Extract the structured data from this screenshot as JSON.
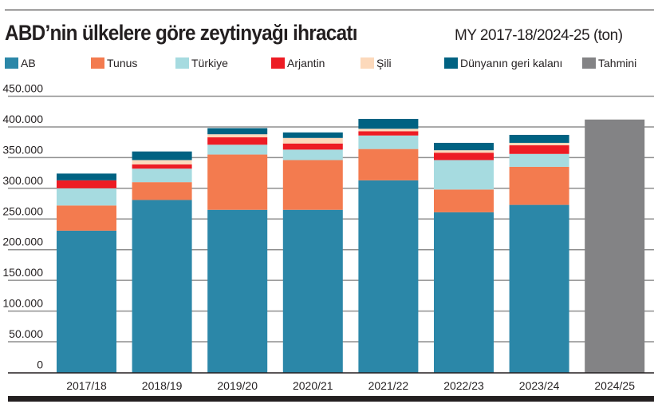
{
  "header": {
    "title": "ABD’nin ülkelere göre zeytinyağı ihracatı",
    "subtitle": "MY 2017-18/2024-25 (ton)"
  },
  "chart_data": {
    "type": "bar",
    "stacked": true,
    "title": "ABD’nin ülkelere göre zeytinyağı ihracatı",
    "subtitle": "MY 2017-18/2024-25 (ton)",
    "categories": [
      "2017/18",
      "2018/19",
      "2019/20",
      "2020/21",
      "2021/22",
      "2022/23",
      "2023/24",
      "2024/25"
    ],
    "series": [
      {
        "name": "AB",
        "color": "#2b87a8",
        "values": [
          231000,
          281000,
          265000,
          265000,
          313000,
          261000,
          273000,
          null
        ]
      },
      {
        "name": "Tunus",
        "color": "#f37b4f",
        "values": [
          41000,
          29000,
          90000,
          81000,
          51000,
          37000,
          62000,
          null
        ]
      },
      {
        "name": "Türkiye",
        "color": "#a6dbe0",
        "values": [
          28000,
          22000,
          16000,
          17000,
          22000,
          48000,
          21000,
          null
        ]
      },
      {
        "name": "Arjantin",
        "color": "#ed1c24",
        "values": [
          13000,
          7000,
          12000,
          10000,
          7000,
          12000,
          14000,
          null
        ]
      },
      {
        "name": "Şili",
        "color": "#fcd9bb",
        "values": [
          0,
          7000,
          5000,
          9000,
          4000,
          4000,
          4000,
          null
        ]
      },
      {
        "name": "Dünyanın geri kalanı",
        "color": "#006282",
        "values": [
          11000,
          14000,
          10000,
          9000,
          16000,
          12000,
          13000,
          null
        ]
      },
      {
        "name": "Tahmini",
        "color": "#838385",
        "values": [
          null,
          null,
          null,
          null,
          null,
          null,
          null,
          412000
        ]
      }
    ],
    "yticks": [
      "0",
      "50.000",
      "100.000",
      "150.000",
      "200.000",
      "250.000",
      "300.000",
      "350.000",
      "400.000",
      "450.000"
    ],
    "ylim": [
      0,
      450000
    ],
    "grid": true,
    "legend": "top"
  }
}
